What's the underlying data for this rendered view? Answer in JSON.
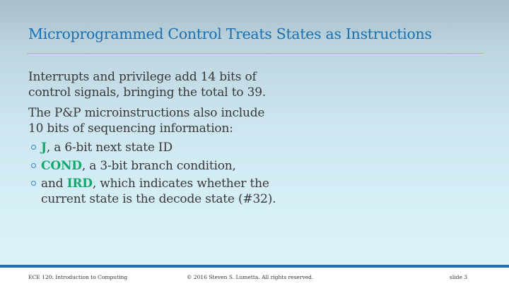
{
  "slide": {
    "title": "Microprogrammed Control Treats States as Instructions",
    "paragraphs": [
      {
        "line1": "Interrupts and privilege add 14 bits of",
        "line2": "control signals, bringing the total to 39."
      },
      {
        "line1": "The P&P microinstructions also include",
        "line2": "10 bits of sequencing information:"
      }
    ],
    "bullets": [
      {
        "prefix": "",
        "term": "J",
        "rest": ", a 6-bit next state ID",
        "rest2": ""
      },
      {
        "prefix": "",
        "term": "COND",
        "rest": ", a 3-bit branch condition,",
        "rest2": ""
      },
      {
        "prefix": "and ",
        "term": "IRD",
        "rest": ", which indicates whether the",
        "rest2": "current state is the decode state (#32)."
      }
    ],
    "colors": {
      "title": "#1c6fb0",
      "highlight": "#15a86d",
      "rule": "#c8b858",
      "footer_bar": "#1c6fb0"
    }
  },
  "footer": {
    "course": "ECE 120: Introduction to Computing",
    "copyright": "© 2016 Steven S. Lumetta.  All rights reserved.",
    "slide_number": "slide 3"
  }
}
